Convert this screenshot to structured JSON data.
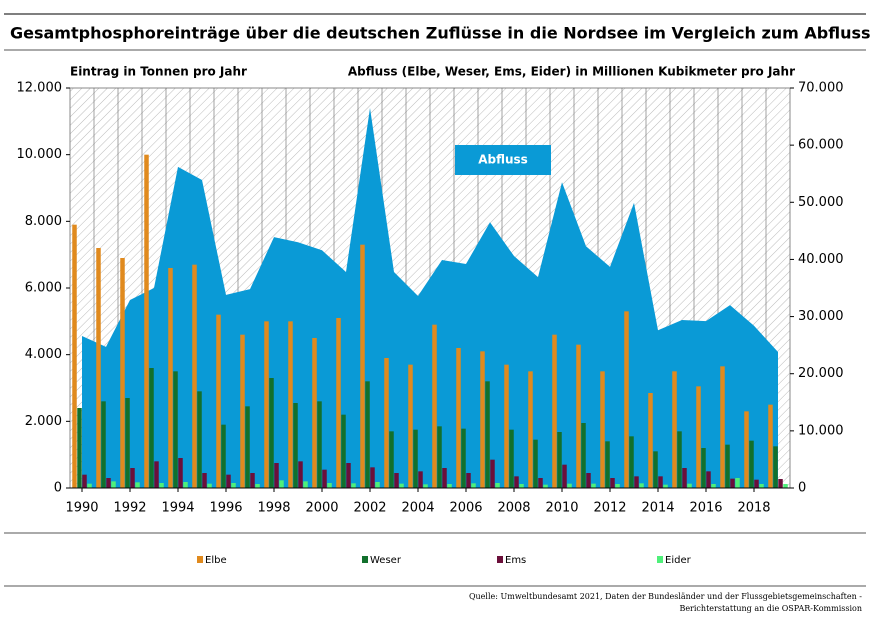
{
  "chart_data": {
    "type": "bar",
    "title": "Gesamtphosphoreinträge über die deutschen Zuflüsse in die Nordsee im Vergleich zum Abfluss",
    "y_label": "Eintrag in Tonnen pro Jahr",
    "y2_label": "Abfluss (Elbe, Weser, Ems, Eider) in Millionen Kubikmeter pro Jahr",
    "source": [
      "Quelle: Umweltbundesamt 2021, Daten der Bundesländer und der Flussgebietsgemeinschaften -",
      "Berichterstattung an die OSPAR-Kommission"
    ],
    "x": [
      1990,
      1991,
      1992,
      1993,
      1994,
      1995,
      1996,
      1997,
      1998,
      1999,
      2000,
      2001,
      2002,
      2003,
      2004,
      2005,
      2006,
      2007,
      2008,
      2009,
      2010,
      2011,
      2012,
      2013,
      2014,
      2015,
      2016,
      2017,
      2018,
      2019
    ],
    "xlim": [
      1989.5,
      2019.5
    ],
    "xticks": [
      1990,
      1992,
      1994,
      1996,
      1998,
      2000,
      2002,
      2004,
      2006,
      2008,
      2010,
      2012,
      2014,
      2016,
      2018
    ],
    "ylim": [
      0,
      12000
    ],
    "yticks": [
      {
        "value": 0,
        "label": "0"
      },
      {
        "value": 2000,
        "label": "2.000"
      },
      {
        "value": 4000,
        "label": "4.000"
      },
      {
        "value": 6000,
        "label": "6.000"
      },
      {
        "value": 8000,
        "label": "8.000"
      },
      {
        "value": 10000,
        "label": "10.000"
      },
      {
        "value": 12000,
        "label": "12.000"
      }
    ],
    "y2lim": [
      0,
      70000
    ],
    "y2ticks": [
      {
        "value": 0,
        "label": "0"
      },
      {
        "value": 10000,
        "label": "10.000"
      },
      {
        "value": 20000,
        "label": "20.000"
      },
      {
        "value": 30000,
        "label": "30.000"
      },
      {
        "value": 40000,
        "label": "40.000"
      },
      {
        "value": 50000,
        "label": "50.000"
      },
      {
        "value": 60000,
        "label": "60.000"
      },
      {
        "value": 70000,
        "label": "70.000"
      }
    ],
    "series": [
      {
        "name": "Elbe",
        "type": "bar",
        "color": "#e08a1e",
        "values": [
          7900,
          7200,
          6900,
          10000,
          6600,
          6700,
          5200,
          4600,
          5000,
          5000,
          4500,
          5100,
          7300,
          3900,
          3700,
          4900,
          4200,
          4100,
          3700,
          3500,
          4600,
          4300,
          3500,
          5300,
          2850,
          3500,
          3050,
          3650,
          2300,
          2500
        ]
      },
      {
        "name": "Weser",
        "type": "bar",
        "color": "#12702c",
        "values": [
          2400,
          2600,
          2700,
          3600,
          3500,
          2900,
          1900,
          2450,
          3300,
          2550,
          2600,
          2200,
          3200,
          1700,
          1750,
          1850,
          1780,
          3200,
          1750,
          1450,
          1680,
          1950,
          1400,
          1550,
          1100,
          1700,
          1200,
          1300,
          1420,
          1250
        ]
      },
      {
        "name": "Ems",
        "type": "bar",
        "color": "#6b0f3a",
        "values": [
          400,
          300,
          600,
          800,
          900,
          450,
          400,
          450,
          750,
          800,
          550,
          750,
          620,
          450,
          500,
          600,
          450,
          850,
          350,
          300,
          700,
          450,
          300,
          350,
          350,
          600,
          500,
          280,
          250,
          270
        ]
      },
      {
        "name": "Eider",
        "type": "bar",
        "color": "#4ff07a",
        "values": [
          130,
          200,
          170,
          150,
          180,
          130,
          150,
          120,
          230,
          200,
          150,
          140,
          180,
          130,
          110,
          120,
          140,
          150,
          120,
          100,
          130,
          130,
          120,
          140,
          100,
          130,
          120,
          300,
          120,
          120
        ]
      },
      {
        "name": "Abfluss",
        "type": "area",
        "axis": "y2",
        "color": "#0a9ad6",
        "values": [
          26600,
          24700,
          32900,
          35000,
          56200,
          53900,
          33800,
          34800,
          43900,
          43000,
          41600,
          37800,
          66500,
          37800,
          33600,
          39900,
          39200,
          46500,
          40600,
          36900,
          53500,
          42300,
          38700,
          49900,
          27600,
          29400,
          29200,
          32000,
          28400,
          23800
        ]
      }
    ]
  }
}
